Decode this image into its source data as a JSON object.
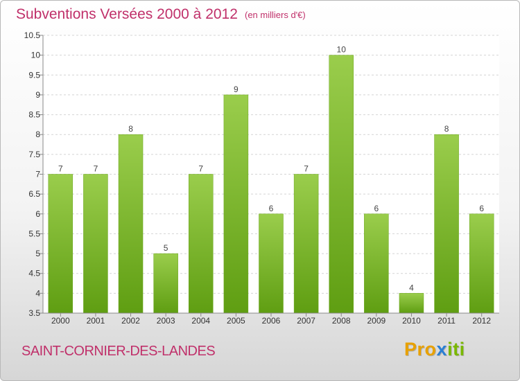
{
  "header": {
    "title": "Subventions Versées 2000 à 2012",
    "unit": "(en milliers d'€)"
  },
  "footer": {
    "commune": "SAINT-CORNIER-DES-LANDES",
    "logo_letters": [
      "P",
      "r",
      "o",
      "x",
      "i",
      "t",
      "i"
    ],
    "logo_colors": [
      "#e8a100",
      "#e8a100",
      "#e8a100",
      "#2a7fd4",
      "#7ab800",
      "#7ab800",
      "#7ab800"
    ]
  },
  "chart_data": {
    "type": "bar",
    "title": "Subventions Versées 2000 à 2012",
    "xlabel": "",
    "ylabel": "",
    "categories": [
      "2000",
      "2001",
      "2002",
      "2003",
      "2004",
      "2005",
      "2006",
      "2007",
      "2008",
      "2009",
      "2010",
      "2011",
      "2012"
    ],
    "values": [
      7,
      7,
      8,
      5,
      7,
      9,
      6,
      7,
      10,
      6,
      4,
      8,
      6
    ],
    "data_labels": [
      "7",
      "7",
      "8",
      "5",
      "7",
      "9",
      "6",
      "7",
      "10",
      "6",
      "4",
      "8",
      "6"
    ],
    "ylim": [
      3.5,
      10.5
    ],
    "yticks": [
      3.5,
      4,
      4.5,
      5,
      5.5,
      6,
      6.5,
      7,
      7.5,
      8,
      8.5,
      9,
      9.5,
      10,
      10.5
    ],
    "ytick_labels": [
      "3.5",
      "4",
      "4.5",
      "5",
      "5.5",
      "6",
      "6.5",
      "7",
      "7.5",
      "8",
      "8.5",
      "9",
      "9.5",
      "10",
      "10.5"
    ],
    "grid": true,
    "bar_color_top": "#9acd4c",
    "bar_color_bottom": "#5f9e12"
  }
}
